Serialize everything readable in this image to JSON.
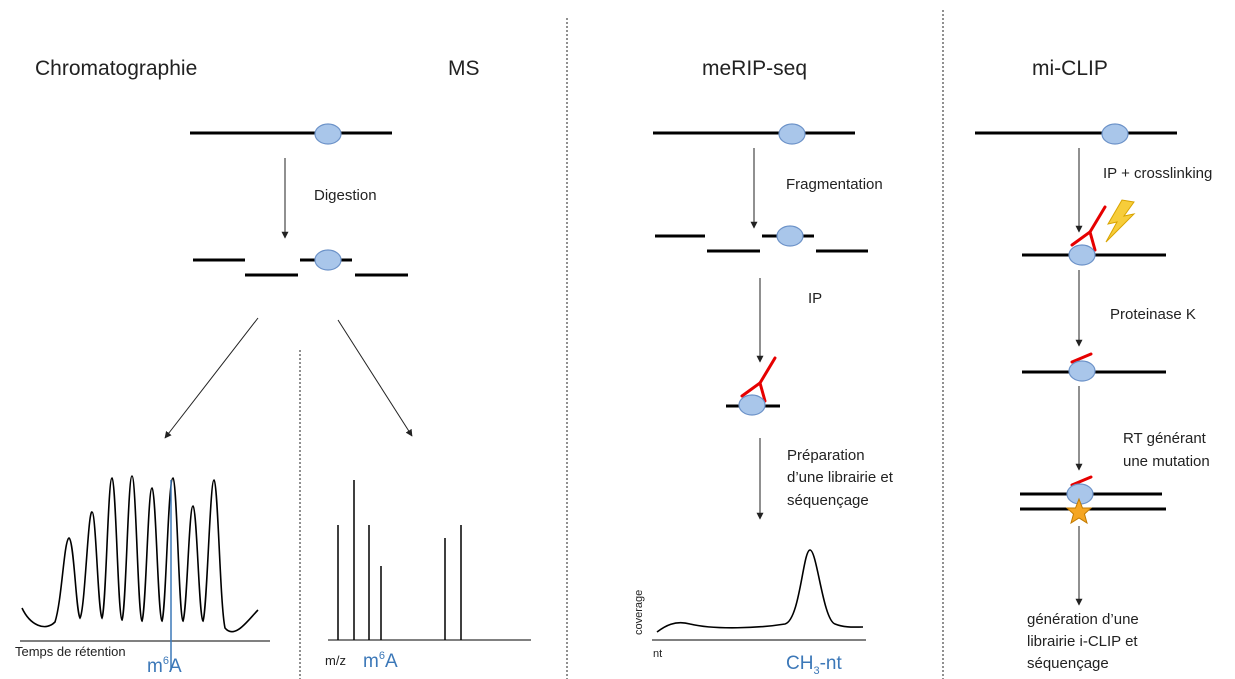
{
  "titles": {
    "chromatographie": "Chromatographie",
    "ms": "MS",
    "merip": "meRIP-seq",
    "miclip": "mi-CLIP"
  },
  "steps": {
    "digestion": "Digestion",
    "fragmentation": "Fragmentation",
    "ip": "IP",
    "preparation": [
      "Préparation",
      "d’une librairie et",
      "séquençage"
    ],
    "ip_crosslinking": "IP + crosslinking",
    "proteinase": "Proteinase K",
    "rt": [
      "RT générant",
      "une mutation"
    ],
    "generation": [
      "génération d’une",
      "librairie i-CLIP et",
      "séquençage"
    ]
  },
  "axes": {
    "retention": "Temps de rétention",
    "mz": "m/z",
    "coverage": "coverage",
    "nt": "nt"
  },
  "markers": {
    "m6a_base": "m",
    "m6a_sup": "6",
    "m6a_end": "A",
    "ch3_base": "CH",
    "ch3_sub": "3",
    "ch3_end": "-nt"
  },
  "colors": {
    "oval": "#a9c6ea",
    "antibody": "#e60000",
    "marker_text": "#3c78b8",
    "star": "#f5a623"
  }
}
